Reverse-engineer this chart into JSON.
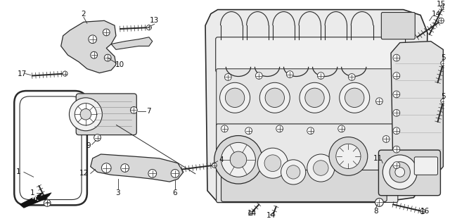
{
  "bg_color": "#ffffff",
  "fig_width": 6.4,
  "fig_height": 3.11,
  "dpi": 100,
  "line_color": "#2a2a2a",
  "light_fill": "#f0f0f0",
  "mid_fill": "#d8d8d8",
  "dark_fill": "#aaaaaa",
  "label_fontsize": 7.5,
  "label_color": "#111111"
}
